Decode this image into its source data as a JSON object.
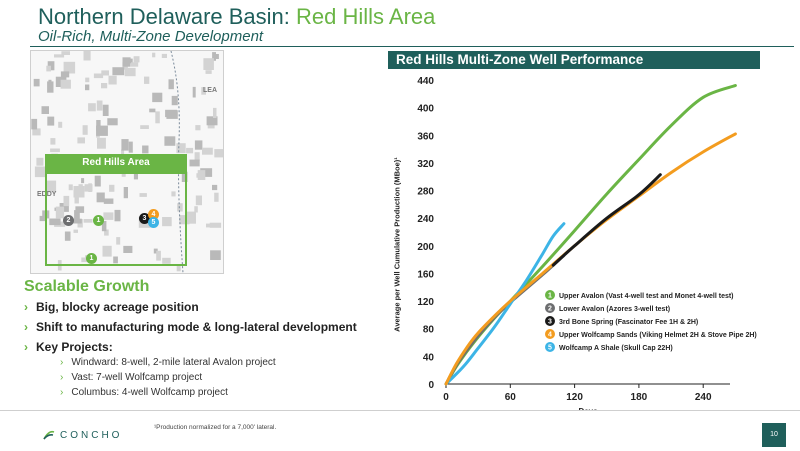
{
  "header": {
    "title_prefix": "Northern Delaware Basin: ",
    "title_highlight": "Red Hills Area",
    "subtitle": "Oil-Rich, Multi-Zone Development"
  },
  "map": {
    "label_lea": "LEA",
    "label_eddy": "EDDY",
    "area_label": "Red Hills Area",
    "markers": [
      {
        "num": "1",
        "color": "#6ab545"
      },
      {
        "num": "2",
        "color": "#6d6e70"
      },
      {
        "num": "3",
        "color": "#1a1a1a"
      },
      {
        "num": "4",
        "color": "#f39c1f"
      },
      {
        "num": "5",
        "color": "#3cb4e6"
      },
      {
        "num": "1",
        "color": "#6ab545"
      }
    ]
  },
  "growth": {
    "title": "Scalable Growth",
    "bullets": [
      "Big, blocky acreage position",
      "Shift to manufacturing mode & long-lateral development",
      "Key Projects:"
    ],
    "sub_bullets": [
      "Windward: 8-well, 2-mile lateral Avalon project",
      "Vast: 7-well Wolfcamp project",
      "Columbus: 4-well Wolfcamp project"
    ]
  },
  "chart_title": "Red Hills Multi-Zone Well Performance",
  "chart_data": {
    "type": "line",
    "xlabel": "Days",
    "ylabel": "Average per Well Cumulative Production (MBoe)¹",
    "xlim": [
      0,
      265
    ],
    "ylim": [
      0,
      440
    ],
    "xticks": [
      "0",
      "60",
      "120",
      "180",
      "240"
    ],
    "yticks": [
      "0",
      "40",
      "80",
      "120",
      "160",
      "200",
      "240",
      "280",
      "320",
      "360",
      "400",
      "440"
    ],
    "grid": false,
    "legend_position": "lower-right",
    "series": [
      {
        "name": "Upper Avalon (Vast 4-well test and Monet 4-well test)",
        "num": "1",
        "color": "#6ab545",
        "points": [
          [
            0,
            0
          ],
          [
            10,
            26
          ],
          [
            20,
            48
          ],
          [
            30,
            68
          ],
          [
            45,
            95
          ],
          [
            60,
            120
          ],
          [
            90,
            170
          ],
          [
            120,
            222
          ],
          [
            150,
            275
          ],
          [
            180,
            325
          ],
          [
            210,
            374
          ],
          [
            240,
            415
          ],
          [
            270,
            432
          ]
        ]
      },
      {
        "name": "Lower Avalon (Azores 3-well test)",
        "num": "2",
        "color": "#6d6e70",
        "points": [
          [
            0,
            0
          ],
          [
            10,
            28
          ],
          [
            20,
            50
          ],
          [
            30,
            70
          ],
          [
            45,
            96
          ],
          [
            60,
            118
          ],
          [
            90,
            158
          ],
          [
            110,
            186
          ]
        ]
      },
      {
        "name": "3rd Bone Spring (Fascinator Fee 1H & 2H)",
        "num": "3",
        "color": "#1a1a1a",
        "points": [
          [
            100,
            172
          ],
          [
            120,
            200
          ],
          [
            150,
            240
          ],
          [
            180,
            274
          ],
          [
            200,
            303
          ]
        ]
      },
      {
        "name": "Upper Wolfcamp Sands (Viking Helmet 2H & Stove Pipe 2H)",
        "num": "4",
        "color": "#f39c1f",
        "points": [
          [
            0,
            0
          ],
          [
            10,
            30
          ],
          [
            20,
            54
          ],
          [
            30,
            74
          ],
          [
            45,
            98
          ],
          [
            60,
            120
          ],
          [
            90,
            160
          ],
          [
            120,
            200
          ],
          [
            150,
            238
          ],
          [
            180,
            272
          ],
          [
            210,
            306
          ],
          [
            240,
            336
          ],
          [
            270,
            362
          ]
        ]
      },
      {
        "name": "Wolfcamp A Shale (Skull Cap 22H)",
        "num": "5",
        "color": "#3cb4e6",
        "points": [
          [
            0,
            0
          ],
          [
            10,
            15
          ],
          [
            20,
            32
          ],
          [
            30,
            52
          ],
          [
            45,
            82
          ],
          [
            60,
            116
          ],
          [
            75,
            150
          ],
          [
            90,
            188
          ],
          [
            100,
            214
          ],
          [
            110,
            232
          ]
        ]
      }
    ]
  },
  "footnote": "¹Production normalized for a 7,000' lateral.",
  "footer": {
    "logo_text": "CONCHO",
    "page_number": "10"
  }
}
